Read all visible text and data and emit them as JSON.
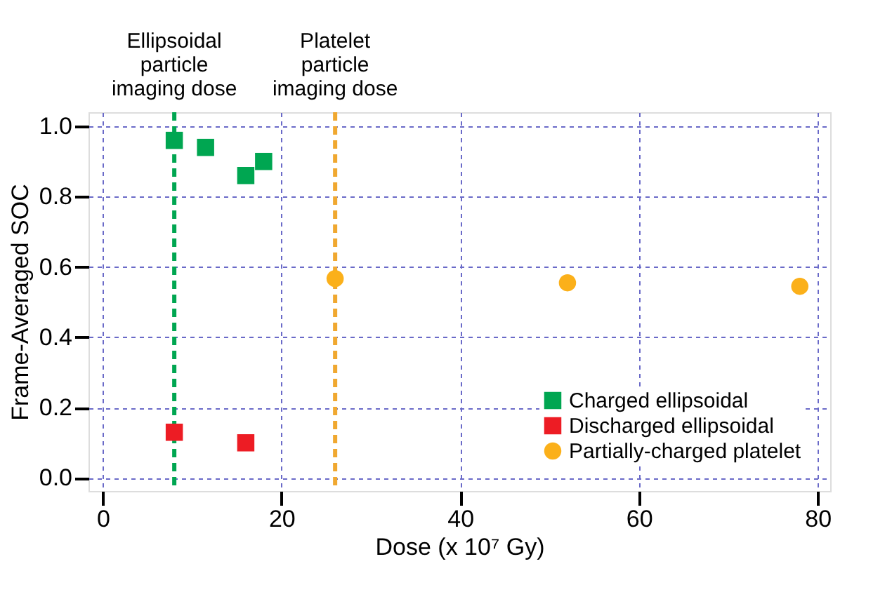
{
  "chart_data": {
    "type": "scatter",
    "xlabel": "Dose (x 10⁷ Gy)",
    "ylabel": "Frame-Averaged SOC",
    "xlim": [
      -1.6,
      81.4
    ],
    "ylim": [
      -0.037,
      1.04
    ],
    "xticks": [
      0,
      20,
      40,
      60,
      80
    ],
    "yticks": [
      {
        "value": 0,
        "label": "0.0"
      },
      {
        "value": 0.2,
        "label": "0.2"
      },
      {
        "value": 0.4,
        "label": "0.4"
      },
      {
        "value": 0.6,
        "label": "0.6"
      },
      {
        "value": 0.8,
        "label": "0.8"
      },
      {
        "value": 1.0,
        "label": "1.0"
      }
    ],
    "grid": true,
    "legend": "bottom right",
    "series": [
      {
        "name": "Charged ellipsoidal",
        "color": "#00a651",
        "marker": "square",
        "x": [
          8,
          11.5,
          16,
          18
        ],
        "values": [
          0.96,
          0.94,
          0.86,
          0.9
        ]
      },
      {
        "name": "Discharged ellipsoidal",
        "color": "#ed1c24",
        "marker": "square",
        "x": [
          8,
          16
        ],
        "values": [
          0.13,
          0.1
        ]
      },
      {
        "name": "Partially-charged platelet",
        "color": "#fbb01a",
        "marker": "circle",
        "x": [
          26,
          52,
          78
        ],
        "values": [
          0.567,
          0.555,
          0.545
        ]
      }
    ],
    "ref_lines": [
      {
        "axis": "x",
        "value": 8,
        "label": "Ellipsoidal particle imaging dose",
        "color": "#00a651",
        "line_style": "dashed"
      },
      {
        "axis": "x",
        "value": 26,
        "label": "Platelet particle imaging dose",
        "color": "#f0a830",
        "line_style": "dashed"
      }
    ]
  }
}
